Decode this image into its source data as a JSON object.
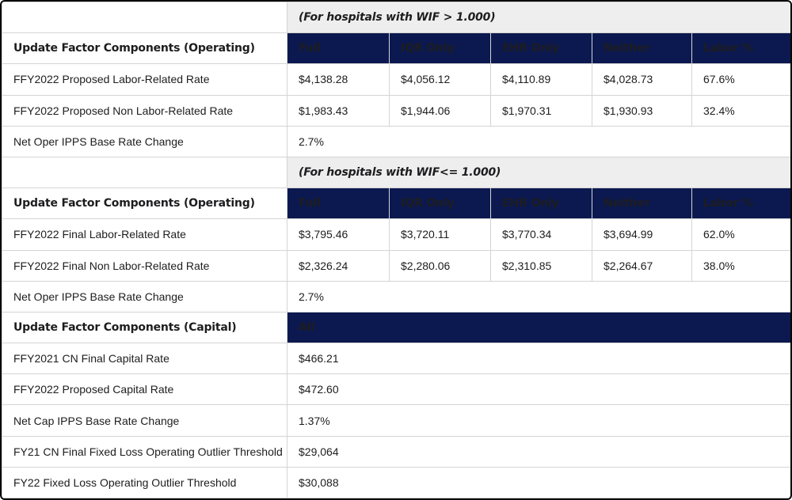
{
  "table": {
    "colors": {
      "navy": "#0c1950",
      "band_bg": "#eeeeee",
      "grid": "#d4d4d4",
      "outer_border": "#060606",
      "header_text": "#ffffff",
      "body_text": "#1d1d1f"
    },
    "column_headers": [
      "Full",
      "IQR Only",
      "EHR Only",
      "Neither",
      "Labor %"
    ],
    "rows": [
      {
        "type": "band",
        "label": "",
        "band": "(For hospitals with WIF > 1.000)"
      },
      {
        "type": "header",
        "label": "Update Factor Components (Operating)",
        "cols": [
          "Full",
          "IQR Only",
          "EHR Only",
          "Neither",
          "Labor %"
        ]
      },
      {
        "type": "data",
        "label": "FFY2022 Proposed Labor-Related Rate",
        "values": [
          "$4,138.28",
          "$4,056.12",
          "$4,110.89",
          "$4,028.73",
          "67.6%"
        ]
      },
      {
        "type": "data",
        "label": "FFY2022 Proposed Non Labor-Related Rate",
        "values": [
          "$1,983.43",
          "$1,944.06",
          "$1,970.31",
          "$1,930.93",
          "32.4%"
        ]
      },
      {
        "type": "span",
        "label": "Net Oper IPPS Base Rate Change",
        "value": "2.7%"
      },
      {
        "type": "band",
        "label": "",
        "band": "(For hospitals with WIF<= 1.000)"
      },
      {
        "type": "header",
        "label": "Update Factor Components (Operating)",
        "cols": [
          "Full",
          "IQR Only",
          "EHR Only",
          "Neither",
          "Labor %"
        ]
      },
      {
        "type": "data",
        "label": "FFY2022 Final Labor-Related Rate",
        "values": [
          "$3,795.46",
          "$3,720.11",
          "$3,770.34",
          "$3,694.99",
          "62.0%"
        ]
      },
      {
        "type": "data",
        "label": "FFY2022 Final Non Labor-Related Rate",
        "values": [
          "$2,326.24",
          "$2,280.06",
          "$2,310.85",
          "$2,264.67",
          "38.0%"
        ]
      },
      {
        "type": "span",
        "label": "Net Oper IPPS Base Rate Change",
        "value": "2.7%"
      },
      {
        "type": "navy-span",
        "label": "Update Factor Components (Capital)",
        "value": "All"
      },
      {
        "type": "span",
        "label": "FFY2021 CN Final Capital Rate",
        "value": "$466.21"
      },
      {
        "type": "span",
        "label": "FFY2022 Proposed Capital Rate",
        "value": "$472.60"
      },
      {
        "type": "span",
        "label": "Net Cap IPPS Base Rate Change",
        "value": "1.37%"
      },
      {
        "type": "span",
        "label": "FY21 CN Final Fixed Loss Operating Outlier Threshold",
        "value": "$29,064"
      },
      {
        "type": "span",
        "label": "FY22 Fixed Loss Operating Outlier Threshold",
        "value": "$30,088"
      }
    ]
  }
}
